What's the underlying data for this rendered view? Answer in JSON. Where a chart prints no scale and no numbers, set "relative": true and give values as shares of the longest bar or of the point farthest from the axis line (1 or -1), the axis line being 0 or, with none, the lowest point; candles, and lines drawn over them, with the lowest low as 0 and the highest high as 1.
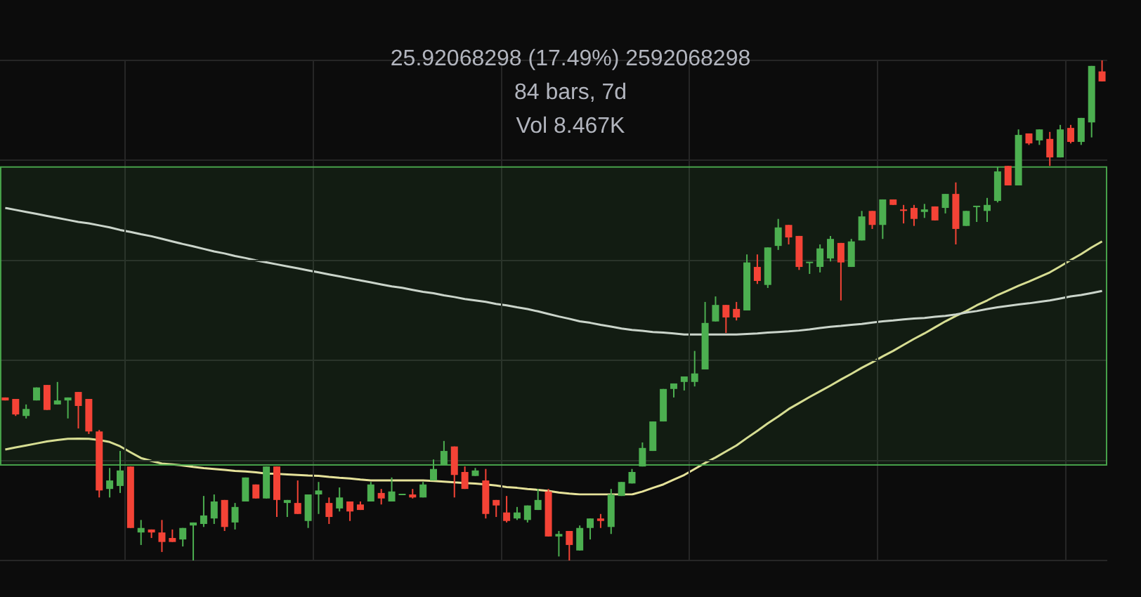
{
  "chart_data": [
    {
      "type": "candlestick",
      "relative": true,
      "grid": true,
      "annotations": [
        "25.92068298 (17.49%) 2592068298",
        "84 bars, 7d",
        "Vol 8.467K"
      ],
      "categories": [
        null,
        null,
        null,
        null,
        null,
        null,
        null,
        null,
        null,
        null,
        null,
        null,
        null,
        null,
        null,
        null,
        null,
        null,
        null,
        null,
        null,
        null,
        null,
        null,
        null,
        null,
        null,
        null,
        null,
        null,
        null,
        null,
        null,
        null,
        null,
        null,
        null,
        null,
        null,
        null,
        null,
        null,
        null,
        null,
        null,
        null,
        null,
        null,
        null,
        null,
        null,
        null,
        null,
        null,
        null,
        null,
        null,
        null,
        null,
        null,
        null,
        null,
        null,
        null,
        null,
        null,
        null,
        null,
        null,
        null,
        null,
        null,
        null,
        null,
        null,
        null,
        null,
        null,
        null,
        null,
        null,
        null,
        null,
        null,
        null,
        null,
        null,
        null,
        null,
        null,
        null,
        null,
        null,
        null,
        null,
        null,
        null,
        null,
        null,
        null,
        null,
        null,
        null,
        null,
        null,
        null
      ],
      "bands": [
        {
          "axis": "y",
          "from": 0.191,
          "to": 0.787,
          "color": "#4caf50"
        }
      ],
      "colors": [
        "#f44336",
        "#f44336",
        "#4caf50",
        "#4caf50",
        "#f44336",
        "#4caf50",
        "#4caf50",
        "#f44336",
        "#f44336",
        "#f44336",
        "#4caf50",
        "#4caf50",
        "#f44336",
        "#4caf50",
        "#f44336",
        "#f44336",
        "#f44336",
        "#4caf50",
        "#4caf50",
        "#4caf50",
        "#4caf50",
        "#f44336",
        "#4caf50",
        "#4caf50",
        "#f44336",
        "#4caf50",
        "#f44336",
        "#4caf50",
        "#f44336",
        "#4caf50",
        "#4caf50",
        "#f44336",
        "#4caf50",
        "#f44336",
        "#f44336",
        "#4caf50",
        "#f44336",
        "#4caf50",
        "#4caf50",
        "#f44336",
        "#4caf50",
        "#4caf50",
        "#4caf50",
        "#f44336",
        "#f44336",
        "#4caf50",
        "#f44336",
        "#f44336",
        "#f44336",
        "#4caf50",
        "#4caf50",
        "#4caf50",
        "#f44336",
        "#4caf50",
        "#f44336",
        "#4caf50",
        "#4caf50",
        "#f44336",
        "#4caf50",
        "#4caf50",
        "#4caf50",
        "#4caf50",
        "#4caf50",
        "#4caf50",
        "#4caf50",
        "#4caf50",
        "#4caf50",
        "#4caf50",
        "#4caf50",
        "#f44336",
        "#f44336",
        "#4caf50",
        "#f44336",
        "#4caf50",
        "#4caf50",
        "#f44336",
        "#f44336",
        "#4caf50",
        "#4caf50",
        "#4caf50",
        "#f44336",
        "#4caf50",
        "#4caf50",
        "#f44336",
        "#4caf50",
        "#f44336",
        "#f44336",
        "#f44336",
        "#4caf50",
        "#f44336",
        "#4caf50",
        "#f44336",
        "#4caf50",
        "#4caf50",
        "#4caf50",
        "#4caf50",
        "#f44336",
        "#4caf50",
        "#f44336",
        "#4caf50",
        "#f44336",
        "#4caf50",
        "#f44336",
        "#4caf50",
        "#4caf50",
        "#f44336"
      ],
      "ohlc": [
        [
          0.326,
          0.326,
          0.32,
          0.32
        ],
        [
          0.323,
          0.323,
          0.289,
          0.292
        ],
        [
          0.289,
          0.312,
          0.284,
          0.303
        ],
        [
          0.32,
          0.346,
          0.32,
          0.346
        ],
        [
          0.351,
          0.351,
          0.301,
          0.301
        ],
        [
          0.312,
          0.357,
          0.312,
          0.32
        ],
        [
          0.32,
          0.326,
          0.284,
          0.326
        ],
        [
          0.337,
          0.337,
          0.264,
          0.309
        ],
        [
          0.323,
          0.323,
          0.253,
          0.258
        ],
        [
          0.258,
          0.261,
          0.126,
          0.14
        ],
        [
          0.143,
          0.185,
          0.126,
          0.16
        ],
        [
          0.149,
          0.219,
          0.135,
          0.18
        ],
        [
          0.188,
          0.188,
          0.065,
          0.065
        ],
        [
          0.056,
          0.081,
          0.031,
          0.065
        ],
        [
          0.062,
          0.062,
          0.045,
          0.056
        ],
        [
          0.056,
          0.081,
          0.017,
          0.037
        ],
        [
          0.045,
          0.062,
          0.037,
          0.037
        ],
        [
          0.042,
          0.065,
          0.028,
          0.065
        ],
        [
          0.07,
          0.076,
          0,
          0.076
        ],
        [
          0.073,
          0.129,
          0.067,
          0.09
        ],
        [
          0.084,
          0.132,
          0.073,
          0.118
        ],
        [
          0.121,
          0.121,
          0.059,
          0.067
        ],
        [
          0.076,
          0.115,
          0.062,
          0.107
        ],
        [
          0.118,
          0.166,
          0.118,
          0.166
        ],
        [
          0.152,
          0.152,
          0.124,
          0.124
        ],
        [
          0.124,
          0.188,
          0.124,
          0.188
        ],
        [
          0.188,
          0.188,
          0.087,
          0.121
        ],
        [
          0.115,
          0.121,
          0.087,
          0.121
        ],
        [
          0.115,
          0.16,
          0.093,
          0.093
        ],
        [
          0.079,
          0.132,
          0.065,
          0.132
        ],
        [
          0.132,
          0.157,
          0.093,
          0.14
        ],
        [
          0.115,
          0.126,
          0.073,
          0.087
        ],
        [
          0.104,
          0.146,
          0.098,
          0.126
        ],
        [
          0.118,
          0.118,
          0.079,
          0.098
        ],
        [
          0.112,
          0.118,
          0.101,
          0.101
        ],
        [
          0.118,
          0.157,
          0.118,
          0.152
        ],
        [
          0.135,
          0.143,
          0.112,
          0.124
        ],
        [
          0.118,
          0.166,
          0.118,
          0.138
        ],
        [
          0.132,
          0.132,
          0.132,
          0.132
        ],
        [
          0.132,
          0.143,
          0.124,
          0.126
        ],
        [
          0.126,
          0.157,
          0.126,
          0.152
        ],
        [
          0.16,
          0.202,
          0.16,
          0.183
        ],
        [
          0.191,
          0.239,
          0.191,
          0.219
        ],
        [
          0.228,
          0.228,
          0.126,
          0.171
        ],
        [
          0.177,
          0.188,
          0.143,
          0.143
        ],
        [
          0.169,
          0.185,
          0.169,
          0.18
        ],
        [
          0.16,
          0.183,
          0.084,
          0.093
        ],
        [
          0.121,
          0.121,
          0.087,
          0.11
        ],
        [
          0.096,
          0.129,
          0.076,
          0.079
        ],
        [
          0.084,
          0.107,
          0.081,
          0.096
        ],
        [
          0.081,
          0.11,
          0.076,
          0.11
        ],
        [
          0.101,
          0.143,
          0.101,
          0.121
        ],
        [
          0.138,
          0.143,
          0.048,
          0.048
        ],
        [
          0.048,
          0.059,
          0.008,
          0.053
        ],
        [
          0.059,
          0.059,
          0,
          0.031
        ],
        [
          0.02,
          0.07,
          0.02,
          0.065
        ],
        [
          0.065,
          0.084,
          0.042,
          0.084
        ],
        [
          0.084,
          0.093,
          0.065,
          0.079
        ],
        [
          0.067,
          0.143,
          0.053,
          0.132
        ],
        [
          0.129,
          0.157,
          0.129,
          0.157
        ],
        [
          0.154,
          0.183,
          0.154,
          0.177
        ],
        [
          0.188,
          0.236,
          0.188,
          0.225
        ],
        [
          0.219,
          0.278,
          0.219,
          0.278
        ],
        [
          0.278,
          0.343,
          0.278,
          0.343
        ],
        [
          0.343,
          0.354,
          0.326,
          0.354
        ],
        [
          0.357,
          0.368,
          0.34,
          0.368
        ],
        [
          0.357,
          0.419,
          0.348,
          0.374
        ],
        [
          0.382,
          0.517,
          0.382,
          0.475
        ],
        [
          0.478,
          0.528,
          0.478,
          0.511
        ],
        [
          0.511,
          0.511,
          0.455,
          0.486
        ],
        [
          0.503,
          0.517,
          0.48,
          0.486
        ],
        [
          0.5,
          0.612,
          0.5,
          0.596
        ],
        [
          0.587,
          0.612,
          0.553,
          0.559
        ],
        [
          0.551,
          0.626,
          0.545,
          0.626
        ],
        [
          0.629,
          0.683,
          0.621,
          0.666
        ],
        [
          0.671,
          0.671,
          0.632,
          0.646
        ],
        [
          0.649,
          0.649,
          0.581,
          0.587
        ],
        [
          0.596,
          0.596,
          0.573,
          0.596
        ],
        [
          0.587,
          0.632,
          0.576,
          0.624
        ],
        [
          0.604,
          0.649,
          0.598,
          0.643
        ],
        [
          0.635,
          0.635,
          0.52,
          0.596
        ],
        [
          0.587,
          0.643,
          0.587,
          0.638
        ],
        [
          0.64,
          0.699,
          0.64,
          0.688
        ],
        [
          0.699,
          0.699,
          0.663,
          0.671
        ],
        [
          0.671,
          0.722,
          0.643,
          0.722
        ],
        [
          0.722,
          0.722,
          0.711,
          0.711
        ],
        [
          0.702,
          0.711,
          0.674,
          0.699
        ],
        [
          0.705,
          0.711,
          0.669,
          0.683
        ],
        [
          0.697,
          0.713,
          0.685,
          0.702
        ],
        [
          0.708,
          0.708,
          0.68,
          0.68
        ],
        [
          0.705,
          0.733,
          0.694,
          0.733
        ],
        [
          0.733,
          0.756,
          0.632,
          0.663
        ],
        [
          0.669,
          0.699,
          0.669,
          0.699
        ],
        [
          0.708,
          0.708,
          0.677,
          0.708
        ],
        [
          0.699,
          0.725,
          0.677,
          0.711
        ],
        [
          0.719,
          0.787,
          0.716,
          0.778
        ],
        [
          0.789,
          0.789,
          0.75,
          0.75
        ],
        [
          0.75,
          0.862,
          0.75,
          0.851
        ],
        [
          0.854,
          0.854,
          0.831,
          0.834
        ],
        [
          0.84,
          0.862,
          0.831,
          0.862
        ],
        [
          0.843,
          0.857,
          0.789,
          0.806
        ],
        [
          0.806,
          0.871,
          0.806,
          0.862
        ],
        [
          0.865,
          0.871,
          0.834,
          0.837
        ],
        [
          0.837,
          0.885,
          0.831,
          0.885
        ],
        [
          0.876,
          0.989,
          0.846,
          0.989
        ],
        [
          0.978,
          1,
          0.958,
          0.958
        ]
      ]
    },
    {
      "type": "line",
      "relative": true,
      "marker": "none",
      "categories": [
        null,
        null,
        null,
        null,
        null,
        null,
        null,
        null,
        null,
        null,
        null,
        null,
        null,
        null,
        null,
        null,
        null,
        null,
        null,
        null,
        null,
        null,
        null,
        null,
        null,
        null,
        null,
        null,
        null,
        null,
        null,
        null,
        null,
        null,
        null,
        null,
        null,
        null,
        null,
        null,
        null,
        null,
        null,
        null,
        null,
        null,
        null,
        null,
        null,
        null,
        null,
        null,
        null,
        null,
        null,
        null,
        null,
        null,
        null,
        null,
        null,
        null,
        null,
        null,
        null,
        null,
        null,
        null,
        null,
        null,
        null,
        null,
        null,
        null,
        null,
        null,
        null,
        null,
        null,
        null,
        null,
        null,
        null,
        null,
        null,
        null,
        null,
        null,
        null,
        null,
        null,
        null,
        null,
        null,
        null,
        null,
        null,
        null,
        null,
        null,
        null,
        null,
        null,
        null,
        null,
        null
      ],
      "series": [
        {
          "color": "#d9d9d9",
          "values": [
            1,
            0.993,
            0.986,
            0.979,
            0.972,
            0.965,
            0.958,
            0.951,
            0.946,
            0.939,
            0.932,
            0.923,
            0.916,
            0.908,
            0.901,
            0.892,
            0.883,
            0.874,
            0.866,
            0.857,
            0.848,
            0.841,
            0.832,
            0.825,
            0.817,
            0.81,
            0.803,
            0.796,
            0.789,
            0.782,
            0.775,
            0.768,
            0.761,
            0.754,
            0.747,
            0.74,
            0.733,
            0.726,
            0.721,
            0.714,
            0.707,
            0.702,
            0.695,
            0.689,
            0.682,
            0.677,
            0.672,
            0.665,
            0.66,
            0.653,
            0.647,
            0.639,
            0.63,
            0.621,
            0.613,
            0.604,
            0.599,
            0.592,
            0.586,
            0.579,
            0.574,
            0.571,
            0.567,
            0.565,
            0.562,
            0.558,
            0.558,
            0.558,
            0.558,
            0.558,
            0.558,
            0.56,
            0.562,
            0.565,
            0.567,
            0.569,
            0.572,
            0.576,
            0.581,
            0.585,
            0.588,
            0.592,
            0.595,
            0.6,
            0.604,
            0.607,
            0.611,
            0.614,
            0.616,
            0.62,
            0.623,
            0.628,
            0.635,
            0.64,
            0.647,
            0.653,
            0.658,
            0.663,
            0.667,
            0.672,
            0.677,
            0.684,
            0.691,
            0.696,
            0.703,
            0.71
          ]
        },
        {
          "color": "#e6e29a",
          "values": [
            0.157,
            0.164,
            0.171,
            0.178,
            0.185,
            0.19,
            0.194,
            0.195,
            0.194,
            0.19,
            0.183,
            0.168,
            0.147,
            0.127,
            0.117,
            0.108,
            0.105,
            0.101,
            0.096,
            0.092,
            0.089,
            0.086,
            0.082,
            0.08,
            0.077,
            0.073,
            0.072,
            0.07,
            0.068,
            0.066,
            0.065,
            0.061,
            0.058,
            0.056,
            0.052,
            0.049,
            0.049,
            0.049,
            0.049,
            0.049,
            0.049,
            0.047,
            0.045,
            0.042,
            0.04,
            0.038,
            0.035,
            0.031,
            0.026,
            0.023,
            0.019,
            0.016,
            0.012,
            0.007,
            0.003,
            0,
            0,
            0,
            0,
            0,
            0,
            0.01,
            0.023,
            0.035,
            0.052,
            0.068,
            0.089,
            0.11,
            0.129,
            0.15,
            0.171,
            0.197,
            0.222,
            0.248,
            0.272,
            0.298,
            0.319,
            0.34,
            0.36,
            0.38,
            0.401,
            0.421,
            0.442,
            0.461,
            0.482,
            0.501,
            0.522,
            0.543,
            0.562,
            0.583,
            0.604,
            0.623,
            0.64,
            0.66,
            0.677,
            0.696,
            0.712,
            0.728,
            0.743,
            0.759,
            0.775,
            0.796,
            0.818,
            0.839,
            0.862,
            0.883
          ]
        }
      ]
    }
  ]
}
